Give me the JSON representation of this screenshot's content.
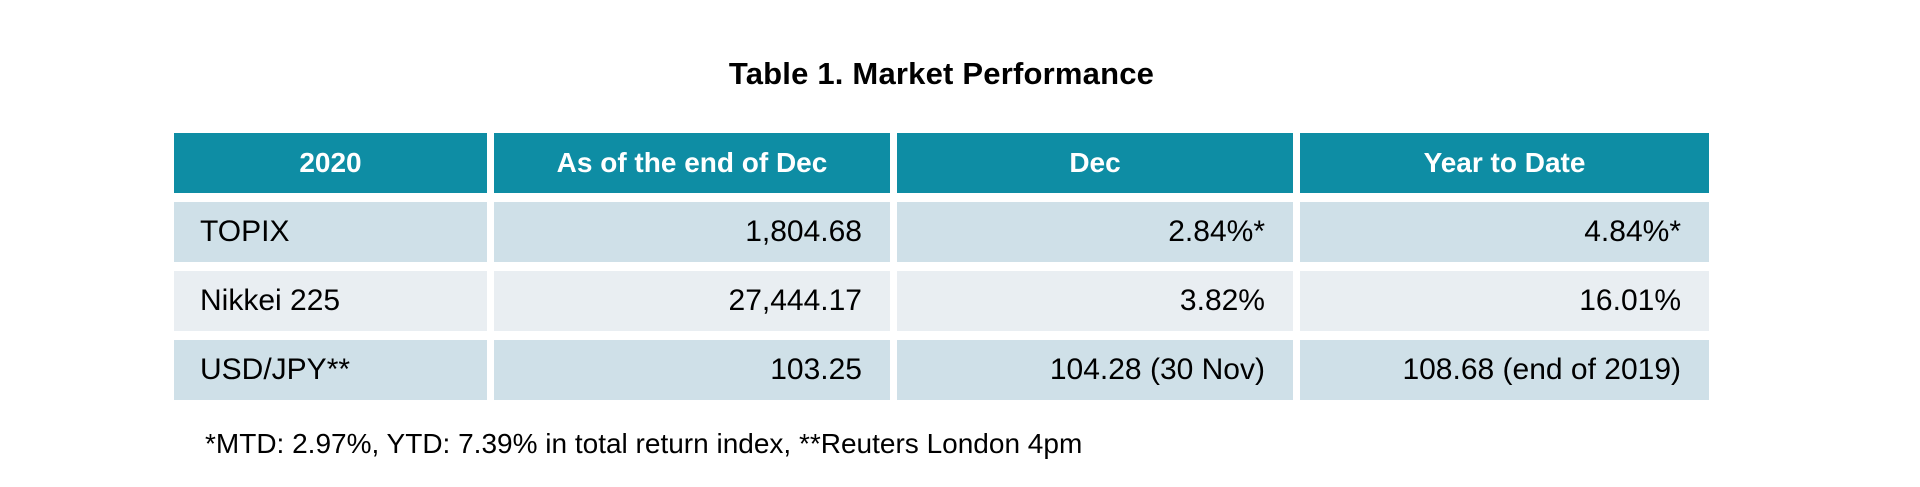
{
  "title": "Table 1. Market Performance",
  "table": {
    "headers": [
      "2020",
      "As of the end of Dec",
      "Dec",
      "Year to Date"
    ],
    "rows": [
      {
        "label": "TOPIX",
        "values": [
          "1,804.68",
          "2.84%*",
          "4.84%*"
        ]
      },
      {
        "label": "Nikkei 225",
        "values": [
          "27,444.17",
          "3.82%",
          "16.01%"
        ]
      },
      {
        "label": "USD/JPY**",
        "values": [
          "103.25",
          "104.28 (30 Nov)",
          "108.68 (end of 2019)"
        ]
      }
    ]
  },
  "footnote": "*MTD: 2.97%, YTD: 7.39% in total return index, **Reuters London 4pm",
  "colors": {
    "header_bg": "#0e8da4",
    "header_text": "#ffffff",
    "row_odd_bg": "#cfe0e8",
    "row_even_bg": "#e9eef2",
    "body_text": "#000000"
  }
}
